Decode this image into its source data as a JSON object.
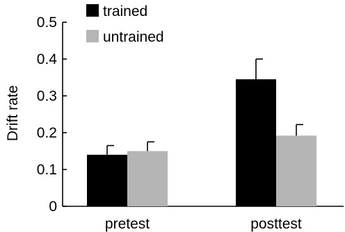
{
  "chart_data": {
    "type": "bar",
    "title": "",
    "xlabel": "",
    "ylabel": "Drift rate",
    "ylim": [
      0,
      0.5
    ],
    "yticks": [
      0,
      0.1,
      0.2,
      0.3,
      0.4,
      0.5
    ],
    "ytick_labels": [
      "0",
      "0.1",
      "0.2",
      "0.3",
      "0.4",
      "0.5"
    ],
    "categories": [
      "pretest",
      "posttest"
    ],
    "series": [
      {
        "name": "trained",
        "color": "#000000",
        "values": [
          0.14,
          0.345
        ],
        "errors": [
          0.025,
          0.055
        ]
      },
      {
        "name": "untrained",
        "color": "#b5b5b5",
        "values": [
          0.15,
          0.192
        ],
        "errors": [
          0.025,
          0.03
        ]
      }
    ],
    "legend": "top-left",
    "grid": false
  }
}
